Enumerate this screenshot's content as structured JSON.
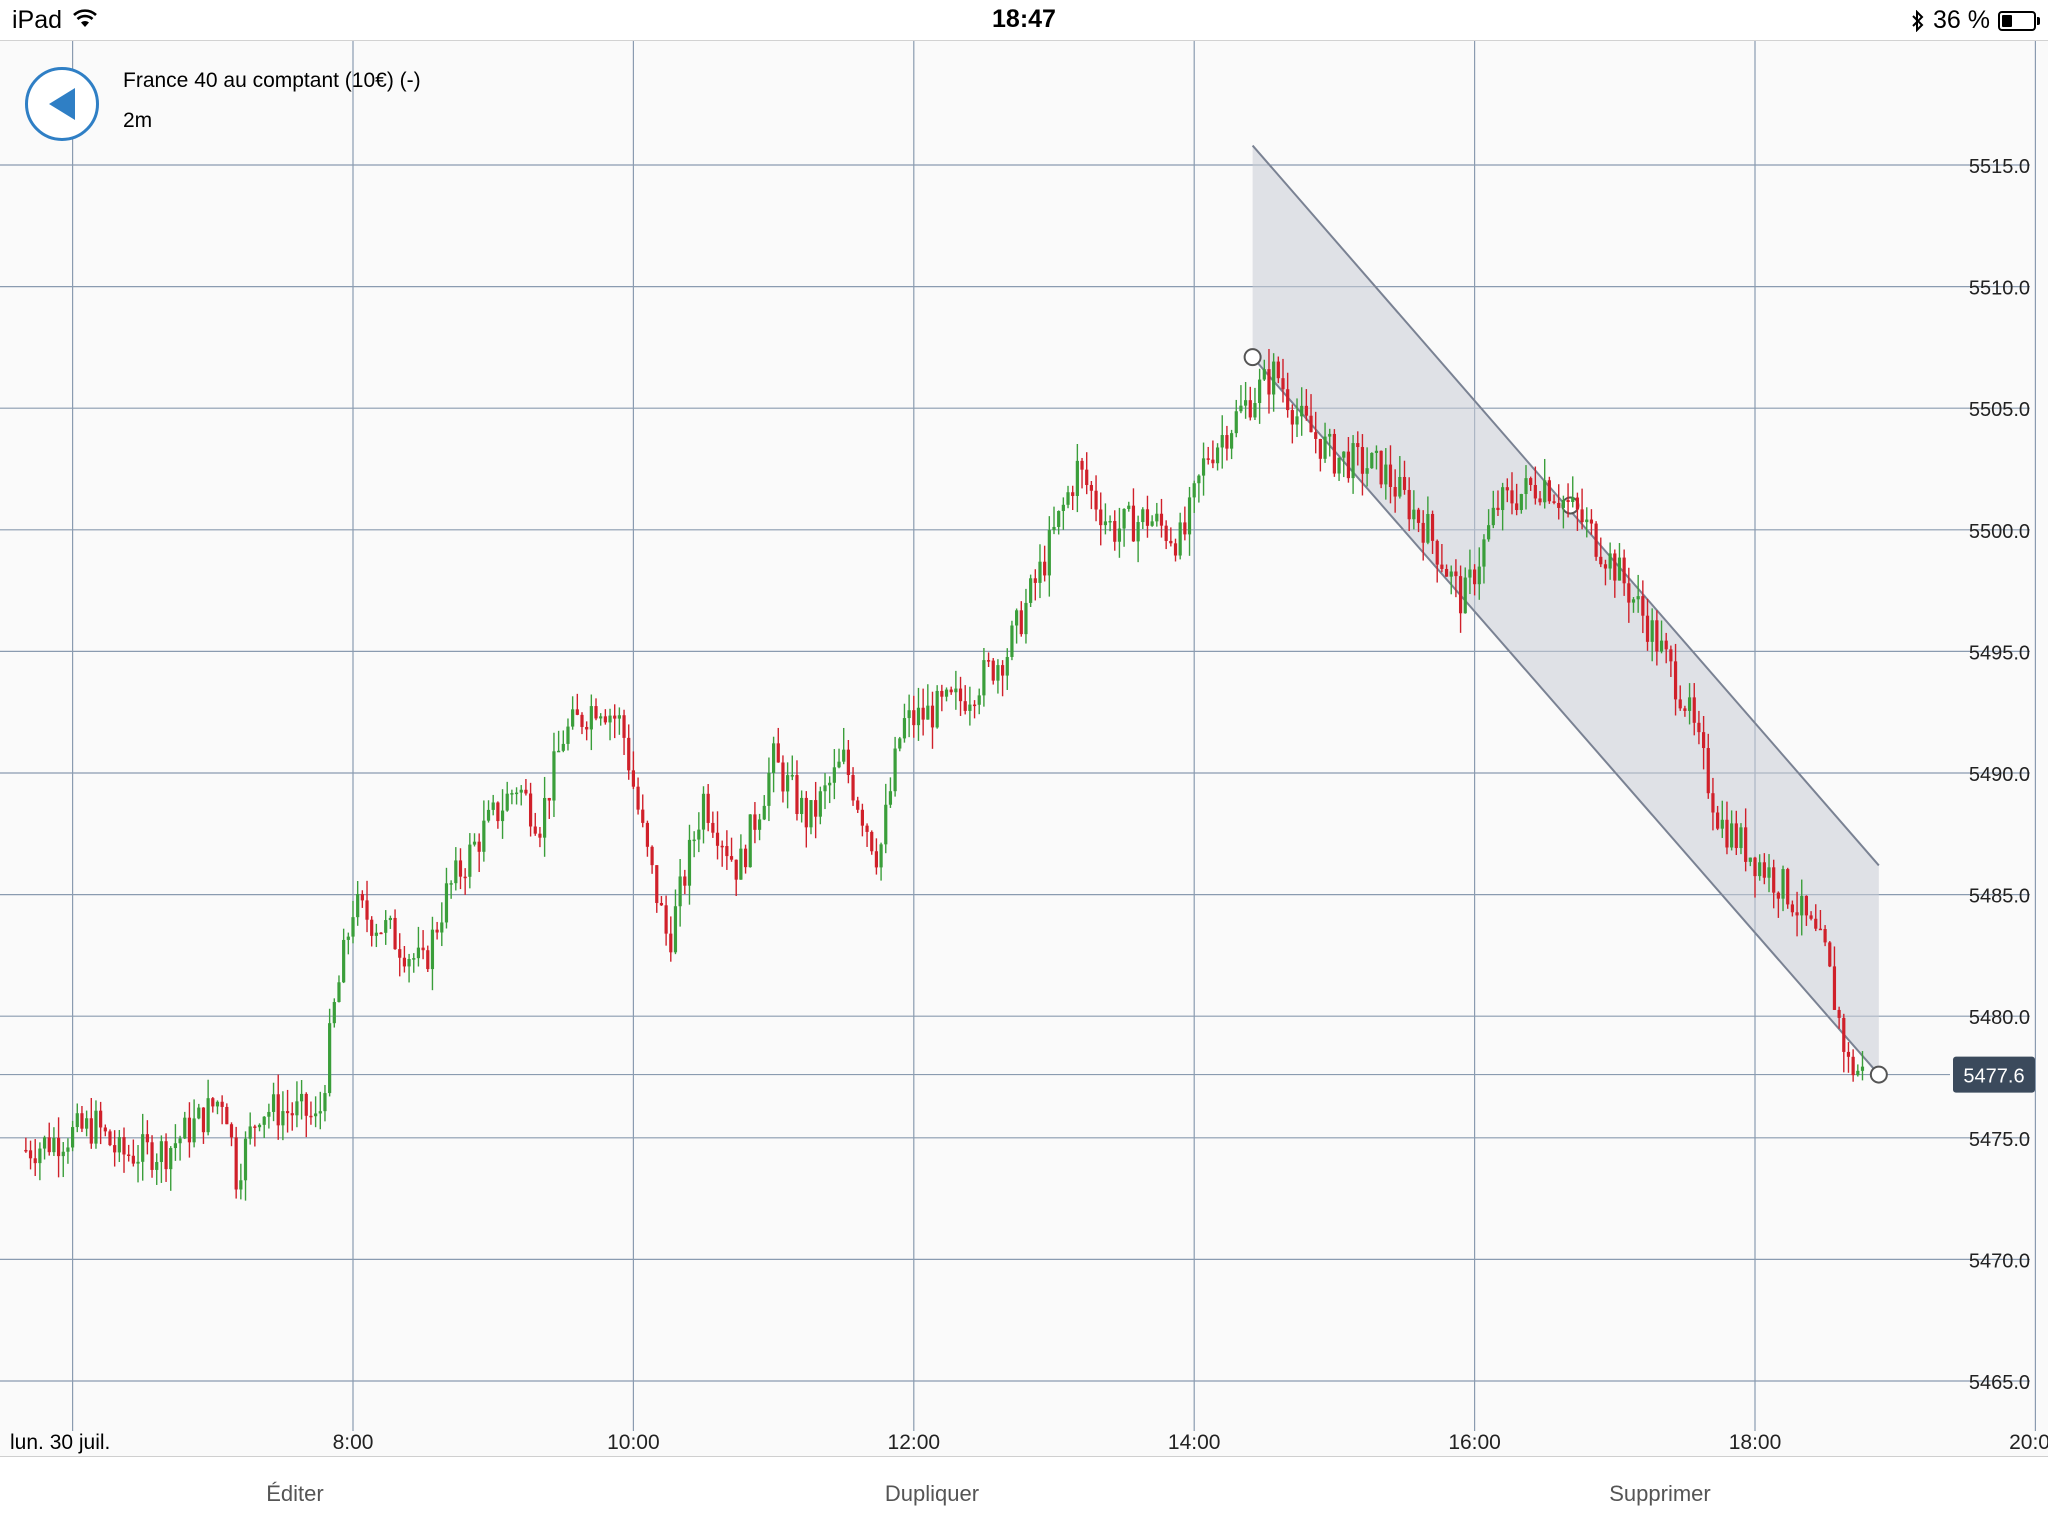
{
  "status_bar": {
    "device": "iPad",
    "time": "18:47",
    "battery": "36 %",
    "battery_level": 0.36
  },
  "header": {
    "instrument": "France 40 au comptant (10€) (-)",
    "timeframe": "2m"
  },
  "chart_data": {
    "type": "candlestick",
    "title": "France 40 au comptant (10€) (-)",
    "timeframe": "2m",
    "date_label": "lun. 30 juil.",
    "x_ticks": [
      "8:00",
      "10:00",
      "12:00",
      "14:00",
      "16:00",
      "18:00",
      "20:00"
    ],
    "y_ticks": [
      "5465.0",
      "5470.0",
      "5475.0",
      "5480.0",
      "5485.0",
      "5490.0",
      "5495.0",
      "5500.0",
      "5505.0",
      "5510.0",
      "5515.0"
    ],
    "y_axis": "right",
    "current_price": "5477.6",
    "colors": {
      "up": "#3a9e3a",
      "down": "#d0202a",
      "grid": "#8a9bb0",
      "channel": "#c9ccd6",
      "price_label_bg": "#3b4a5c"
    },
    "price_path": [
      {
        "t": "5:40",
        "p": 5474.5
      },
      {
        "t": "6:10",
        "p": 5475.5
      },
      {
        "t": "6:20",
        "p": 5474.3
      },
      {
        "t": "6:40",
        "p": 5474.5
      },
      {
        "t": "6:55",
        "p": 5475.8
      },
      {
        "t": "7:05",
        "p": 5476.8
      },
      {
        "t": "7:10",
        "p": 5473.5
      },
      {
        "t": "7:20",
        "p": 5476.2
      },
      {
        "t": "7:40",
        "p": 5476.0
      },
      {
        "t": "7:45",
        "p": 5475.5
      },
      {
        "t": "7:52",
        "p": 5480.3
      },
      {
        "t": "8:00",
        "p": 5484.5
      },
      {
        "t": "8:15",
        "p": 5483.5
      },
      {
        "t": "8:30",
        "p": 5482.0
      },
      {
        "t": "8:40",
        "p": 5485.0
      },
      {
        "t": "8:55",
        "p": 5487.5
      },
      {
        "t": "9:10",
        "p": 5489.5
      },
      {
        "t": "9:20",
        "p": 5488.0
      },
      {
        "t": "9:30",
        "p": 5491.5
      },
      {
        "t": "9:45",
        "p": 5493.0
      },
      {
        "t": "9:55",
        "p": 5492.0
      },
      {
        "t": "10:05",
        "p": 5487.0
      },
      {
        "t": "10:15",
        "p": 5483.0
      },
      {
        "t": "10:30",
        "p": 5489.0
      },
      {
        "t": "10:45",
        "p": 5486.0
      },
      {
        "t": "11:00",
        "p": 5490.5
      },
      {
        "t": "11:15",
        "p": 5488.0
      },
      {
        "t": "11:30",
        "p": 5490.5
      },
      {
        "t": "11:45",
        "p": 5486.5
      },
      {
        "t": "11:55",
        "p": 5492.0
      },
      {
        "t": "12:20",
        "p": 5493.0
      },
      {
        "t": "12:40",
        "p": 5495.0
      },
      {
        "t": "12:55",
        "p": 5498.5
      },
      {
        "t": "13:10",
        "p": 5502.5
      },
      {
        "t": "13:25",
        "p": 5500.0
      },
      {
        "t": "13:40",
        "p": 5500.5
      },
      {
        "t": "13:55",
        "p": 5499.5
      },
      {
        "t": "14:05",
        "p": 5503.0
      },
      {
        "t": "14:25",
        "p": 5505.5
      },
      {
        "t": "14:35",
        "p": 5506.5
      },
      {
        "t": "14:45",
        "p": 5504.5
      },
      {
        "t": "15:00",
        "p": 5503.0
      },
      {
        "t": "15:20",
        "p": 5502.5
      },
      {
        "t": "15:40",
        "p": 5500.0
      },
      {
        "t": "15:55",
        "p": 5497.0
      },
      {
        "t": "16:10",
        "p": 5501.0
      },
      {
        "t": "16:30",
        "p": 5502.0
      },
      {
        "t": "16:45",
        "p": 5500.5
      },
      {
        "t": "17:00",
        "p": 5498.5
      },
      {
        "t": "17:15",
        "p": 5496.0
      },
      {
        "t": "17:30",
        "p": 5493.0
      },
      {
        "t": "17:45",
        "p": 5488.0
      },
      {
        "t": "18:00",
        "p": 5486.5
      },
      {
        "t": "18:15",
        "p": 5485.0
      },
      {
        "t": "18:30",
        "p": 5482.5
      },
      {
        "t": "18:40",
        "p": 5478.0
      },
      {
        "t": "18:47",
        "p": 5477.6
      }
    ],
    "channel": {
      "anchors": [
        {
          "t": "14:25",
          "p": 5507.1
        },
        {
          "t": "16:41",
          "p": 5501.0
        },
        {
          "t": "18:53",
          "p": 5477.6
        }
      ],
      "upper_start": {
        "t": "14:25",
        "p": 5515.8
      },
      "upper_end": {
        "t": "18:53",
        "p": 5486.2
      }
    }
  },
  "toolbar": {
    "edit": "Éditer",
    "duplicate": "Dupliquer",
    "delete": "Supprimer"
  },
  "icons": {
    "back": "back-arrow-icon"
  }
}
